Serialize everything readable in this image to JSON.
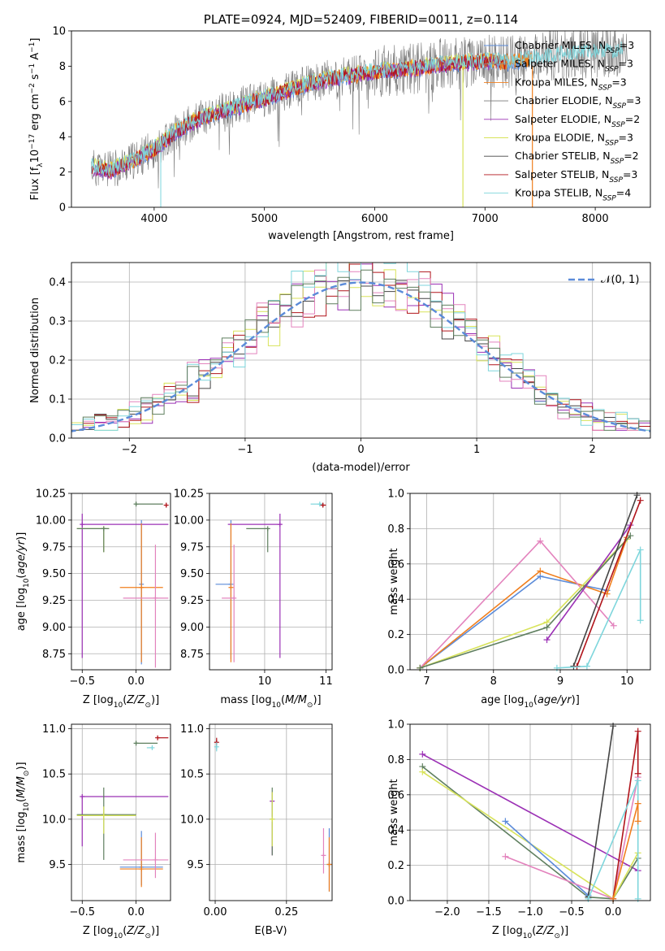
{
  "colors": {
    "chab_miles": "#5b8bd9",
    "salp_miles": "#8a8a8a",
    "krou_miles": "#f07f1e",
    "chab_elodie": "#7a7a7a",
    "salp_elodie": "#9b30b5",
    "krou_elodie": "#d8e35a",
    "chab_stelib": "#444444",
    "salp_stelib": "#b0141b",
    "krou_stelib": "#7ed6dc",
    "pink": "#e383bd",
    "green": "#5f7f5f",
    "dash": "#5b8bd9"
  },
  "chart_data": [
    {
      "id": "spectrum",
      "type": "line",
      "title": "PLATE=0924, MJD=52409, FIBERID=0011, z=0.114",
      "xlabel": "wavelength [Angstrom, rest frame]",
      "ylabel": "Flux [f_λ 10^-17 erg cm^-2 s^-1 A^-1]",
      "xlim": [
        3250,
        8500
      ],
      "ylim": [
        0,
        10
      ],
      "xticks": [
        "4000",
        "5000",
        "6000",
        "7000",
        "8000"
      ],
      "yticks": [
        "0",
        "2",
        "4",
        "6",
        "8",
        "10"
      ],
      "grid": false,
      "legend": "top-right",
      "legend_entries": [
        {
          "label": "Chabrier MILES, N",
          "sub": "SSP",
          "suffix": "=3",
          "color": "chab_miles"
        },
        {
          "label": "Salpeter MILES, N",
          "sub": "SSP",
          "suffix": "=3",
          "color": "salp_miles"
        },
        {
          "label": "Kroupa MILES, N",
          "sub": "SSP",
          "suffix": "=3",
          "color": "krou_miles"
        },
        {
          "label": "Chabrier ELODIE, N",
          "sub": "SSP",
          "suffix": "=3",
          "color": "chab_elodie"
        },
        {
          "label": "Salpeter ELODIE, N",
          "sub": "SSP",
          "suffix": "=2",
          "color": "salp_elodie"
        },
        {
          "label": "Kroupa ELODIE, N",
          "sub": "SSP",
          "suffix": "=3",
          "color": "krou_elodie"
        },
        {
          "label": "Chabrier STELIB, N",
          "sub": "SSP",
          "suffix": "=2",
          "color": "chab_stelib"
        },
        {
          "label": "Salpeter STELIB, N",
          "sub": "SSP",
          "suffix": "=3",
          "color": "salp_stelib"
        },
        {
          "label": "Kroupa STELIB, N",
          "sub": "SSP",
          "suffix": "=4",
          "color": "krou_stelib"
        }
      ],
      "continuum": [
        [
          3400,
          2.3
        ],
        [
          3600,
          2.1
        ],
        [
          3800,
          2.6
        ],
        [
          4000,
          3.3
        ],
        [
          4200,
          4.3
        ],
        [
          4400,
          5.0
        ],
        [
          4600,
          5.4
        ],
        [
          4800,
          5.8
        ],
        [
          5000,
          6.2
        ],
        [
          5200,
          6.6
        ],
        [
          5400,
          7.0
        ],
        [
          5600,
          7.3
        ],
        [
          5800,
          7.5
        ],
        [
          6000,
          7.7
        ],
        [
          6200,
          7.8
        ],
        [
          6400,
          7.9
        ],
        [
          6600,
          8.1
        ],
        [
          6800,
          8.2
        ],
        [
          7000,
          8.3
        ],
        [
          7200,
          8.2
        ],
        [
          7400,
          8.4
        ],
        [
          7600,
          8.6
        ],
        [
          7800,
          8.7
        ],
        [
          8000,
          8.8
        ],
        [
          8300,
          8.9
        ]
      ]
    },
    {
      "id": "residuals",
      "type": "histogram",
      "xlabel": "(data-model)/error",
      "ylabel": "Normed distribution",
      "xlim": [
        -2.5,
        2.5
      ],
      "ylim": [
        0,
        0.45
      ],
      "xticks": [
        "−2",
        "−1",
        "0",
        "1",
        "2"
      ],
      "yticks": [
        "0.0",
        "0.1",
        "0.2",
        "0.3",
        "0.4"
      ],
      "grid": true,
      "legend": "top-right",
      "legend_label": "𝒩(0, 1)",
      "bin_width": 0.1
    },
    {
      "id": "age_vs_z",
      "type": "errorbar",
      "xlabel": "Z [log10(Z/Z⊙)]",
      "ylabel": "age [log10(age/yr)]",
      "xlim": [
        -0.6,
        0.32
      ],
      "ylim": [
        8.6,
        10.25
      ],
      "xticks": [
        "−0.5",
        "0.0"
      ],
      "yticks": [
        "8.75",
        "9.00",
        "9.25",
        "9.50",
        "9.75",
        "10.00",
        "10.25"
      ],
      "grid": true,
      "points": [
        {
          "x": 0.0,
          "xe": [
            0.0,
            0.25
          ],
          "y": 10.15,
          "ye": [
            0.02,
            0.02
          ],
          "c": "green"
        },
        {
          "x": 0.28,
          "xe": [
            0.0,
            0.0
          ],
          "y": 10.14,
          "ye": [
            0.02,
            0.02
          ],
          "c": "salp_stelib"
        },
        {
          "x": -0.5,
          "xe": [
            0.0,
            0.8
          ],
          "y": 9.96,
          "ye": [
            1.25,
            0.1
          ],
          "c": "salp_elodie"
        },
        {
          "x": -0.3,
          "xe": [
            0.25,
            0.05
          ],
          "y": 9.92,
          "ye": [
            0.22,
            0.0
          ],
          "c": "krou_elodie"
        },
        {
          "x": -0.3,
          "xe": [
            0.25,
            0.05
          ],
          "y": 9.92,
          "ye": [
            0.22,
            0.0
          ],
          "c": "green"
        },
        {
          "x": 0.05,
          "xe": [
            0.0,
            0.0
          ],
          "y": 9.4,
          "ye": [
            0.75,
            0.6
          ],
          "c": "chab_miles"
        },
        {
          "x": 0.05,
          "xe": [
            0.2,
            0.2
          ],
          "y": 9.37,
          "ye": [
            0.7,
            0.6
          ],
          "c": "krou_miles"
        },
        {
          "x": 0.18,
          "xe": [
            0.3,
            0.12
          ],
          "y": 9.27,
          "ye": [
            0.65,
            0.5
          ],
          "c": "pink"
        }
      ]
    },
    {
      "id": "age_vs_mass",
      "type": "errorbar",
      "xlabel": "mass [log10(M/M⊙)]",
      "ylabel": "",
      "xlim": [
        9.1,
        11.1
      ],
      "ylim": [
        8.6,
        10.25
      ],
      "xticks": [
        "10",
        "11"
      ],
      "yticks": [
        "8.75",
        "9.00",
        "9.25",
        "9.50",
        "9.75",
        "10.00",
        "10.25"
      ],
      "grid": true,
      "points": [
        {
          "x": 10.9,
          "xe": [
            0.15,
            0.05
          ],
          "y": 10.15,
          "ye": [
            0.02,
            0.02
          ],
          "c": "krou_stelib"
        },
        {
          "x": 10.95,
          "xe": [
            0.0,
            0.05
          ],
          "y": 10.14,
          "ye": [
            0.02,
            0.02
          ],
          "c": "salp_stelib"
        },
        {
          "x": 10.25,
          "xe": [
            0.85,
            0.0
          ],
          "y": 9.96,
          "ye": [
            1.25,
            0.1
          ],
          "c": "salp_elodie"
        },
        {
          "x": 10.05,
          "xe": [
            0.35,
            0.0
          ],
          "y": 9.92,
          "ye": [
            0.22,
            0.0
          ],
          "c": "green"
        },
        {
          "x": 9.45,
          "xe": [
            0.25,
            0.0
          ],
          "y": 9.4,
          "ye": [
            0.7,
            0.6
          ],
          "c": "chab_miles"
        },
        {
          "x": 9.45,
          "xe": [
            0.0,
            0.0
          ],
          "y": 9.37,
          "ye": [
            0.7,
            0.6
          ],
          "c": "krou_miles"
        },
        {
          "x": 9.5,
          "xe": [
            0.2,
            0.0
          ],
          "y": 9.27,
          "ye": [
            0.6,
            0.5
          ],
          "c": "pink"
        }
      ]
    },
    {
      "id": "weight_vs_age",
      "type": "line",
      "xlabel": "age [log10(age/yr)]",
      "ylabel": "mass weight",
      "xlim": [
        6.75,
        10.35
      ],
      "ylim": [
        0,
        1.0
      ],
      "xticks": [
        "7",
        "8",
        "9",
        "10"
      ],
      "yticks": [
        "0.0",
        "0.2",
        "0.4",
        "0.6",
        "0.8",
        "1.0"
      ],
      "grid": true,
      "series": [
        {
          "c": "chab_miles",
          "x": [
            6.9,
            8.7,
            9.7
          ],
          "y": [
            0.01,
            0.53,
            0.45
          ]
        },
        {
          "c": "krou_miles",
          "x": [
            6.9,
            8.7,
            9.7,
            10.0
          ],
          "y": [
            0.01,
            0.56,
            0.43,
            0.75
          ]
        },
        {
          "c": "pink",
          "x": [
            6.9,
            8.7,
            9.8
          ],
          "y": [
            0.01,
            0.73,
            0.25
          ]
        },
        {
          "c": "krou_elodie",
          "x": [
            6.9,
            8.8,
            10.0
          ],
          "y": [
            0.01,
            0.27,
            0.74
          ]
        },
        {
          "c": "green",
          "x": [
            6.9,
            8.8,
            10.05
          ],
          "y": [
            0.01,
            0.24,
            0.76
          ]
        },
        {
          "c": "salp_elodie",
          "x": [
            8.8,
            10.05
          ],
          "y": [
            0.17,
            0.82
          ]
        },
        {
          "c": "chab_stelib",
          "x": [
            9.2,
            10.15
          ],
          "y": [
            0.02,
            0.99
          ]
        },
        {
          "c": "salp_stelib",
          "x": [
            9.25,
            10.2
          ],
          "y": [
            0.02,
            0.96
          ]
        },
        {
          "c": "krou_stelib",
          "x": [
            8.95,
            9.4,
            10.2,
            10.2
          ],
          "y": [
            0.01,
            0.02,
            0.68,
            0.28
          ]
        }
      ]
    },
    {
      "id": "mass_vs_z",
      "type": "errorbar",
      "xlabel": "Z [log10(Z/Z⊙)]",
      "ylabel": "mass [log10(M/M⊙)]",
      "xlim": [
        -0.6,
        0.32
      ],
      "ylim": [
        9.1,
        11.05
      ],
      "xticks": [
        "−0.5",
        "0.0"
      ],
      "yticks": [
        "9.5",
        "10.0",
        "10.5",
        "11.0"
      ],
      "grid": true,
      "points": [
        {
          "x": 0.0,
          "xe": [
            0.0,
            0.2
          ],
          "y": 10.84,
          "ye": [
            0.02,
            0.02
          ],
          "c": "green"
        },
        {
          "x": 0.2,
          "xe": [
            0.0,
            0.1
          ],
          "y": 10.9,
          "ye": [
            0.02,
            0.02
          ],
          "c": "salp_stelib"
        },
        {
          "x": 0.15,
          "xe": [
            0.05,
            0.0
          ],
          "y": 10.79,
          "ye": [
            0.02,
            0.02
          ],
          "c": "krou_stelib"
        },
        {
          "x": -0.5,
          "xe": [
            0.0,
            0.8
          ],
          "y": 10.25,
          "ye": [
            0.55,
            0.0
          ],
          "c": "salp_elodie"
        },
        {
          "x": -0.3,
          "xe": [
            0.25,
            0.3
          ],
          "y": 10.05,
          "ye": [
            0.5,
            0.3
          ],
          "c": "green"
        },
        {
          "x": -0.3,
          "xe": [
            0.25,
            0.3
          ],
          "y": 10.04,
          "ye": [
            0.2,
            0.1
          ],
          "c": "krou_elodie"
        },
        {
          "x": 0.05,
          "xe": [
            0.2,
            0.2
          ],
          "y": 9.47,
          "ye": [
            0.2,
            0.4
          ],
          "c": "chab_miles"
        },
        {
          "x": 0.05,
          "xe": [
            0.2,
            0.2
          ],
          "y": 9.45,
          "ye": [
            0.2,
            0.35
          ],
          "c": "krou_miles"
        },
        {
          "x": 0.18,
          "xe": [
            0.3,
            0.12
          ],
          "y": 9.55,
          "ye": [
            0.2,
            0.3
          ],
          "c": "pink"
        }
      ]
    },
    {
      "id": "mass_vs_ebv",
      "type": "errorbar",
      "xlabel": "E(B-V)",
      "ylabel": "",
      "xlim": [
        -0.02,
        0.41
      ],
      "ylim": [
        9.1,
        11.05
      ],
      "xticks": [
        "0.00",
        "0.25"
      ],
      "yticks": [
        "9.5",
        "10.0",
        "10.5",
        "11.0"
      ],
      "grid": true,
      "points": [
        {
          "x": 0.005,
          "xe": [
            0,
            0
          ],
          "y": 10.85,
          "ye": [
            0.05,
            0.05
          ],
          "c": "salp_stelib"
        },
        {
          "x": 0.005,
          "xe": [
            0,
            0
          ],
          "y": 10.8,
          "ye": [
            0.05,
            0.05
          ],
          "c": "krou_stelib"
        },
        {
          "x": 0.2,
          "xe": [
            0,
            0
          ],
          "y": 10.2,
          "ye": [
            0.6,
            0.1
          ],
          "c": "salp_elodie"
        },
        {
          "x": 0.2,
          "xe": [
            0,
            0
          ],
          "y": 10.0,
          "ye": [
            0.4,
            0.35
          ],
          "c": "green"
        },
        {
          "x": 0.2,
          "xe": [
            0,
            0
          ],
          "y": 10.0,
          "ye": [
            0.3,
            0.3
          ],
          "c": "krou_elodie"
        },
        {
          "x": 0.4,
          "xe": [
            0,
            0
          ],
          "y": 9.5,
          "ye": [
            0.3,
            0.4
          ],
          "c": "chab_miles"
        },
        {
          "x": 0.4,
          "xe": [
            0,
            0
          ],
          "y": 9.5,
          "ye": [
            0.3,
            0.3
          ],
          "c": "krou_miles"
        },
        {
          "x": 0.38,
          "xe": [
            0,
            0
          ],
          "y": 9.6,
          "ye": [
            0.2,
            0.3
          ],
          "c": "pink"
        }
      ]
    },
    {
      "id": "weight_vs_z",
      "type": "line",
      "xlabel": "Z [log10(Z/Z⊙)]",
      "ylabel": "mass weight",
      "xlim": [
        -2.45,
        0.45
      ],
      "ylim": [
        0,
        1.0
      ],
      "xticks": [
        "−2.0",
        "−1.5",
        "−1.0",
        "−0.5",
        "0.0"
      ],
      "yticks": [
        "0.0",
        "0.2",
        "0.4",
        "0.6",
        "0.8",
        "1.0"
      ],
      "grid": true,
      "series": [
        {
          "c": "salp_elodie",
          "x": [
            -2.3,
            0.3
          ],
          "y": [
            0.83,
            0.17
          ]
        },
        {
          "c": "green",
          "x": [
            -2.3,
            -0.3,
            0.0,
            0.3
          ],
          "y": [
            0.76,
            0.02,
            0.01,
            0.24
          ]
        },
        {
          "c": "krou_elodie",
          "x": [
            -2.3,
            0.0,
            0.3
          ],
          "y": [
            0.73,
            0.01,
            0.27
          ]
        },
        {
          "c": "chab_miles",
          "x": [
            -1.3,
            -0.3
          ],
          "y": [
            0.45,
            0.03
          ]
        },
        {
          "c": "pink",
          "x": [
            -1.3,
            0.0,
            0.3
          ],
          "y": [
            0.25,
            0.01,
            0.7
          ]
        },
        {
          "c": "chab_stelib",
          "x": [
            -0.3,
            0.0
          ],
          "y": [
            0.02,
            0.99
          ]
        },
        {
          "c": "salp_stelib",
          "x": [
            0.0,
            0.3,
            0.3
          ],
          "y": [
            0.01,
            0.96,
            0.72
          ]
        },
        {
          "c": "krou_stelib",
          "x": [
            -0.3,
            0.3,
            0.3
          ],
          "y": [
            0.01,
            0.68,
            0.01
          ]
        },
        {
          "c": "krou_miles",
          "x": [
            0.0,
            0.3,
            0.3
          ],
          "y": [
            0.01,
            0.55,
            0.45
          ]
        }
      ]
    }
  ]
}
